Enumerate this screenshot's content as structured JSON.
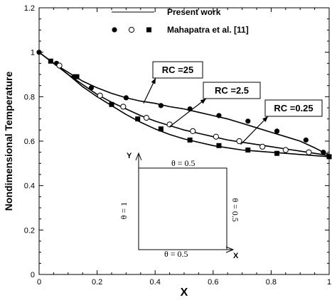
{
  "chart_data": {
    "type": "line",
    "xlabel": "X",
    "ylabel": "Nondimensional Temperature",
    "xlim": [
      0,
      1
    ],
    "ylim": [
      0,
      1.2
    ],
    "x_ticks": [
      "0",
      "0.2",
      "0.4",
      "0.6",
      "0.8",
      "1"
    ],
    "y_ticks": [
      "0",
      "0.2",
      "0.4",
      "0.6",
      "0.8",
      "1",
      "1.2"
    ],
    "x_tick_values": [
      0,
      0.2,
      0.4,
      0.6,
      0.8,
      1
    ],
    "y_tick_values": [
      0,
      0.2,
      0.4,
      0.6,
      0.8,
      1,
      1.2
    ],
    "legend": {
      "placement": "top-center",
      "present_label": "Present work",
      "reference_label": "Mahapatra et al. [11]"
    },
    "callouts": [
      {
        "text": "RC =25",
        "target": [
          0.36,
          0.77
        ]
      },
      {
        "text": "RC =2.5",
        "target": [
          0.45,
          0.665
        ]
      },
      {
        "text": "RC =0.25",
        "target": [
          0.695,
          0.585
        ]
      }
    ],
    "series": [
      {
        "label": "RC =25",
        "line": {
          "x": [
            0,
            0.05,
            0.1,
            0.15,
            0.2,
            0.25,
            0.3,
            0.35,
            0.4,
            0.45,
            0.5,
            0.55,
            0.6,
            0.65,
            0.7,
            0.75,
            0.8,
            0.85,
            0.9,
            0.95,
            0.98,
            1
          ],
          "y": [
            1,
            0.95,
            0.91,
            0.87,
            0.84,
            0.815,
            0.795,
            0.78,
            0.77,
            0.755,
            0.745,
            0.73,
            0.715,
            0.7,
            0.68,
            0.66,
            0.64,
            0.62,
            0.6,
            0.57,
            0.55,
            0.54
          ]
        },
        "markers": {
          "style": "filled-circle",
          "x": [
            0,
            0.06,
            0.12,
            0.18,
            0.3,
            0.42,
            0.52,
            0.62,
            0.72,
            0.82,
            0.92,
            0.98
          ],
          "y": [
            1,
            0.95,
            0.89,
            0.84,
            0.795,
            0.76,
            0.745,
            0.715,
            0.69,
            0.645,
            0.605,
            0.55
          ]
        }
      },
      {
        "label": "RC =2.5",
        "line": {
          "x": [
            0,
            0.05,
            0.1,
            0.15,
            0.2,
            0.25,
            0.3,
            0.35,
            0.4,
            0.45,
            0.5,
            0.55,
            0.6,
            0.65,
            0.7,
            0.75,
            0.8,
            0.85,
            0.9,
            0.95,
            1
          ],
          "y": [
            1,
            0.95,
            0.9,
            0.855,
            0.81,
            0.775,
            0.745,
            0.715,
            0.69,
            0.67,
            0.65,
            0.635,
            0.62,
            0.605,
            0.595,
            0.585,
            0.575,
            0.565,
            0.555,
            0.545,
            0.535
          ]
        },
        "markers": {
          "style": "open-circle",
          "x": [
            0.07,
            0.21,
            0.29,
            0.37,
            0.45,
            0.53,
            0.61,
            0.69,
            0.77,
            0.85,
            0.93
          ],
          "y": [
            0.94,
            0.805,
            0.755,
            0.705,
            0.675,
            0.645,
            0.62,
            0.6,
            0.575,
            0.56,
            0.55
          ]
        }
      },
      {
        "label": "RC =0.25",
        "line": {
          "x": [
            0,
            0.05,
            0.1,
            0.15,
            0.2,
            0.25,
            0.3,
            0.35,
            0.4,
            0.45,
            0.5,
            0.55,
            0.6,
            0.65,
            0.7,
            0.75,
            0.8,
            0.85,
            0.9,
            0.95,
            1
          ],
          "y": [
            1,
            0.95,
            0.9,
            0.845,
            0.8,
            0.76,
            0.72,
            0.685,
            0.655,
            0.63,
            0.61,
            0.595,
            0.58,
            0.57,
            0.56,
            0.555,
            0.55,
            0.545,
            0.54,
            0.535,
            0.53
          ]
        },
        "markers": {
          "style": "filled-square",
          "x": [
            0.04,
            0.13,
            0.25,
            0.34,
            0.42,
            0.52,
            0.62,
            0.72,
            0.82,
            1
          ],
          "y": [
            0.96,
            0.89,
            0.765,
            0.7,
            0.655,
            0.605,
            0.58,
            0.56,
            0.545,
            0.53
          ]
        }
      }
    ],
    "inset": {
      "top_label": "θ = 0.5",
      "bottom_label": "θ = 0.5",
      "left_label": "θ = 1",
      "right_label": "θ = 0.5",
      "x_axis_label": "X",
      "y_axis_label": "Y"
    }
  }
}
